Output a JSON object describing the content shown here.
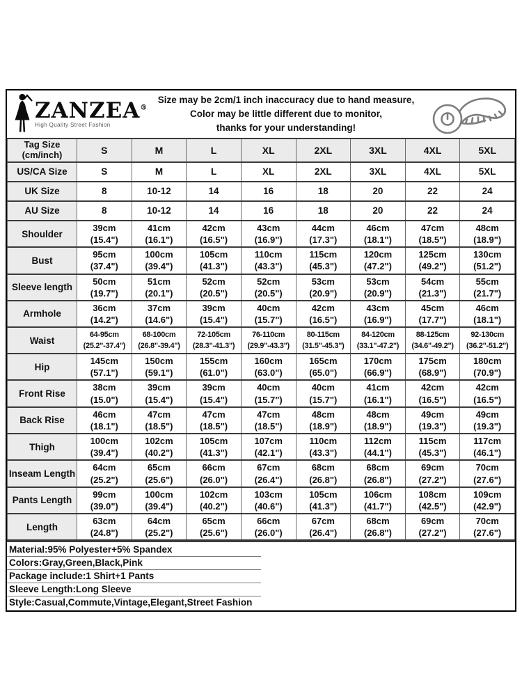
{
  "header": {
    "brand": "ZANZEA",
    "registered_mark": "®",
    "tagline": "High Quality Street Fashion",
    "disclaimer": [
      "Size may be 2cm/1 inch inaccuracy due to hand measure,",
      "Color may be little different due to monitor,",
      "thanks for your understanding!"
    ]
  },
  "table": {
    "corner_label": "Tag Size\n(cm/inch)",
    "columns": [
      "S",
      "M",
      "L",
      "XL",
      "2XL",
      "3XL",
      "4XL",
      "5XL"
    ],
    "rows": [
      {
        "label": "US/CA Size",
        "two_line": false,
        "values": [
          "S",
          "M",
          "L",
          "XL",
          "2XL",
          "3XL",
          "4XL",
          "5XL"
        ]
      },
      {
        "label": "UK Size",
        "two_line": false,
        "values": [
          "8",
          "10-12",
          "14",
          "16",
          "18",
          "20",
          "22",
          "24"
        ]
      },
      {
        "label": "AU Size",
        "two_line": false,
        "values": [
          "8",
          "10-12",
          "14",
          "16",
          "18",
          "20",
          "22",
          "24"
        ]
      },
      {
        "label": "Shoulder",
        "two_line": true,
        "values": [
          "39cm\n(15.4\")",
          "41cm\n(16.1\")",
          "42cm\n(16.5\")",
          "43cm\n(16.9\")",
          "44cm\n(17.3\")",
          "46cm\n(18.1\")",
          "47cm\n(18.5\")",
          "48cm\n(18.9\")"
        ]
      },
      {
        "label": "Bust",
        "two_line": true,
        "values": [
          "95cm\n(37.4\")",
          "100cm\n(39.4\")",
          "105cm\n(41.3\")",
          "110cm\n(43.3\")",
          "115cm\n(45.3\")",
          "120cm\n(47.2\")",
          "125cm\n(49.2\")",
          "130cm\n(51.2\")"
        ]
      },
      {
        "label": "Sleeve length",
        "two_line": true,
        "values": [
          "50cm\n(19.7\")",
          "51cm\n(20.1\")",
          "52cm\n(20.5\")",
          "52cm\n(20.5\")",
          "53cm\n(20.9\")",
          "53cm\n(20.9\")",
          "54cm\n(21.3\")",
          "55cm\n(21.7\")"
        ]
      },
      {
        "label": "Armhole",
        "two_line": true,
        "values": [
          "36cm\n(14.2\")",
          "37cm\n(14.6\")",
          "39cm\n(15.4\")",
          "40cm\n(15.7\")",
          "42cm\n(16.5\")",
          "43cm\n(16.9\")",
          "45cm\n(17.7\")",
          "46cm\n(18.1\")"
        ]
      },
      {
        "label": "Waist",
        "two_line": true,
        "small": true,
        "values": [
          "64-95cm\n(25.2\"-37.4\")",
          "68-100cm\n(26.8\"-39.4\")",
          "72-105cm\n(28.3\"-41.3\")",
          "76-110cm\n(29.9\"-43.3\")",
          "80-115cm\n(31.5\"-45.3\")",
          "84-120cm\n(33.1\"-47.2\")",
          "88-125cm\n(34.6\"-49.2\")",
          "92-130cm\n(36.2\"-51.2\")"
        ]
      },
      {
        "label": "Hip",
        "two_line": true,
        "values": [
          "145cm\n(57.1\")",
          "150cm\n(59.1\")",
          "155cm\n(61.0\")",
          "160cm\n(63.0\")",
          "165cm\n(65.0\")",
          "170cm\n(66.9\")",
          "175cm\n(68.9\")",
          "180cm\n(70.9\")"
        ]
      },
      {
        "label": "Front Rise",
        "two_line": true,
        "values": [
          "38cm\n(15.0\")",
          "39cm\n(15.4\")",
          "39cm\n(15.4\")",
          "40cm\n(15.7\")",
          "40cm\n(15.7\")",
          "41cm\n(16.1\")",
          "42cm\n(16.5\")",
          "42cm\n(16.5\")"
        ]
      },
      {
        "label": "Back Rise",
        "two_line": true,
        "values": [
          "46cm\n(18.1\")",
          "47cm\n(18.5\")",
          "47cm\n(18.5\")",
          "47cm\n(18.5\")",
          "48cm\n(18.9\")",
          "48cm\n(18.9\")",
          "49cm\n(19.3\")",
          "49cm\n(19.3\")"
        ]
      },
      {
        "label": "Thigh",
        "two_line": true,
        "values": [
          "100cm\n(39.4\")",
          "102cm\n(40.2\")",
          "105cm\n(41.3\")",
          "107cm\n(42.1\")",
          "110cm\n(43.3\")",
          "112cm\n(44.1\")",
          "115cm\n(45.3\")",
          "117cm\n(46.1\")"
        ]
      },
      {
        "label": "Inseam Length",
        "two_line": true,
        "values": [
          "64cm\n(25.2\")",
          "65cm\n(25.6\")",
          "66cm\n(26.0\")",
          "67cm\n(26.4\")",
          "68cm\n(26.8\")",
          "68cm\n(26.8\")",
          "69cm\n(27.2\")",
          "70cm\n(27.6\")"
        ]
      },
      {
        "label": "Pants Length",
        "two_line": true,
        "values": [
          "99cm\n(39.0\")",
          "100cm\n(39.4\")",
          "102cm\n(40.2\")",
          "103cm\n(40.6\")",
          "105cm\n(41.3\")",
          "106cm\n(41.7\")",
          "108cm\n(42.5\")",
          "109cm\n(42.9\")"
        ]
      },
      {
        "label": "Length",
        "two_line": true,
        "values": [
          "63cm\n(24.8\")",
          "64cm\n(25.2\")",
          "65cm\n(25.6\")",
          "66cm\n(26.0\")",
          "67cm\n(26.4\")",
          "68cm\n(26.8\")",
          "69cm\n(27.2\")",
          "70cm\n(27.6\")"
        ]
      }
    ]
  },
  "footer": {
    "lines": [
      "Material:95% Polyester+5% Spandex",
      "Colors:Gray,Green,Black,Pink",
      "Package include:1 Shirt+1 Pants",
      "Sleeve Length:Long Sleeve",
      "Style:Casual,Commute,Vintage,Elegant,Street Fashion"
    ]
  },
  "colors": {
    "outer_border": "#000000",
    "grid_line": "#6b6b6b",
    "header_cell_bg": "#ebebeb",
    "cell_bg": "#ffffff",
    "text": "#111111",
    "icon_stroke": "#7d7d7d"
  }
}
